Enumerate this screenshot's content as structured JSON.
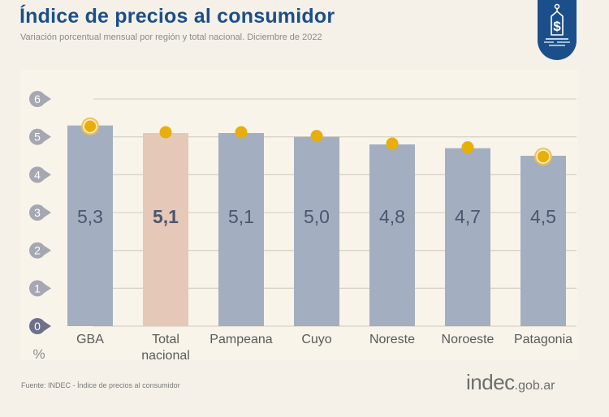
{
  "header": {
    "title": "Índice de precios al consumidor",
    "subtitle": "Variación porcentual mensual por región y total nacional. Diciembre de 2022"
  },
  "badge_icon": "price-tag-dollar-icon",
  "footer": {
    "source": "Fuente: INDEC - Índice de precios al consumidor",
    "logo_main": "indec",
    "logo_suffix": ".gob.ar"
  },
  "colors": {
    "brand": "#1b4f8a",
    "bar": "#a3afc0",
    "bar_highlight": "#e6c8b8",
    "marker": "#e8ae0c",
    "value_text": "#4b5670",
    "tick_badge": "#a5a7b3",
    "tick_badge_zero": "#6d7189"
  },
  "chart_data": {
    "type": "bar",
    "title": "Índice de precios al consumidor",
    "subtitle": "Variación porcentual mensual por región y total nacional. Diciembre de 2022",
    "xlabel": "",
    "ylabel": "%",
    "ylim": [
      0,
      6
    ],
    "yticks": [
      0,
      1,
      2,
      3,
      4,
      5,
      6
    ],
    "grid": true,
    "categories": [
      "GBA",
      "Total nacional",
      "Pampeana",
      "Cuyo",
      "Noreste",
      "Noroeste",
      "Patagonia"
    ],
    "category_lines": [
      [
        "GBA"
      ],
      [
        "Total",
        "nacional"
      ],
      [
        "Pampeana"
      ],
      [
        "Cuyo"
      ],
      [
        "Noreste"
      ],
      [
        "Noroeste"
      ],
      [
        "Patagonia"
      ]
    ],
    "values": [
      5.3,
      5.1,
      5.1,
      5.0,
      4.8,
      4.7,
      4.5
    ],
    "value_labels": [
      "5,3",
      "5,1",
      "5,1",
      "5,0",
      "4,8",
      "4,7",
      "4,5"
    ],
    "highlight": "Total nacional",
    "ring_markers": [
      "GBA",
      "Patagonia"
    ]
  }
}
